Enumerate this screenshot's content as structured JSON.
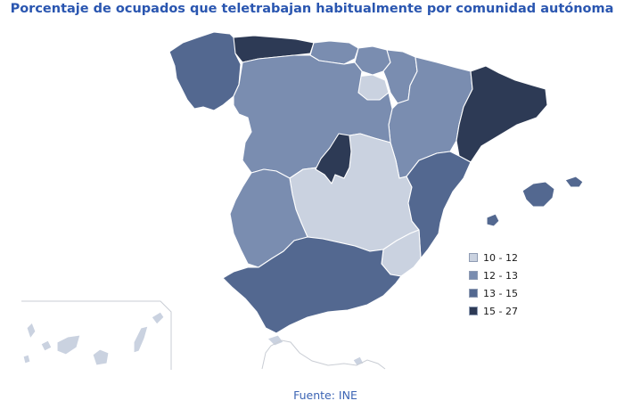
{
  "title": "Porcentaje de ocupados que teletrabajan habitualmente por comunidad autónoma",
  "source": "Fuente: INE",
  "legend": [
    {
      "label": "10 - 12",
      "color": "#cad2e0"
    },
    {
      "label": "12 - 13",
      "color": "#7a8db0"
    },
    {
      "label": "13 - 15",
      "color": "#536890"
    },
    {
      "label": "15 - 27",
      "color": "#2d3a55"
    }
  ],
  "regions": [
    {
      "name": "Galicia",
      "class": 2
    },
    {
      "name": "Asturias",
      "class": 3
    },
    {
      "name": "Cantabria",
      "class": 1
    },
    {
      "name": "País Vasco",
      "class": 1
    },
    {
      "name": "Navarra",
      "class": 1
    },
    {
      "name": "La Rioja",
      "class": 0
    },
    {
      "name": "Aragón",
      "class": 1
    },
    {
      "name": "Cataluña",
      "class": 3
    },
    {
      "name": "Castilla y León",
      "class": 1
    },
    {
      "name": "Madrid",
      "class": 3
    },
    {
      "name": "Castilla-La Mancha",
      "class": 0
    },
    {
      "name": "Extremadura",
      "class": 1
    },
    {
      "name": "Comunitat Valenciana",
      "class": 2
    },
    {
      "name": "Murcia",
      "class": 0
    },
    {
      "name": "Andalucía",
      "class": 2
    },
    {
      "name": "Illes Balears",
      "class": 2
    },
    {
      "name": "Canarias",
      "class": 0
    },
    {
      "name": "Ceuta",
      "class": 0
    },
    {
      "name": "Melilla",
      "class": 0
    }
  ]
}
